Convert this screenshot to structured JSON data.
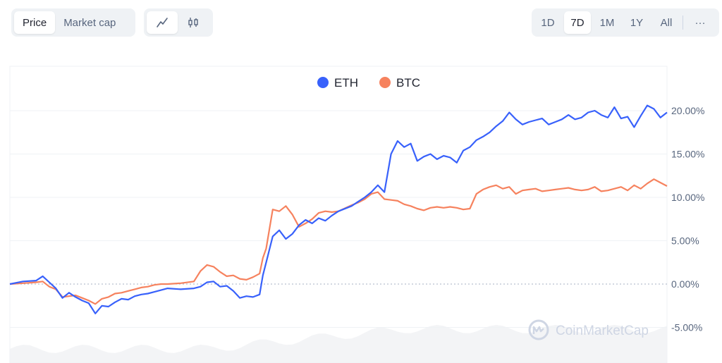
{
  "toolbar": {
    "type_tabs": [
      {
        "label": "Price",
        "active": true
      },
      {
        "label": "Market cap",
        "active": false
      }
    ],
    "mode_tabs": [
      {
        "icon": "line-chart-icon",
        "active": true
      },
      {
        "icon": "candlestick-icon",
        "active": false
      }
    ],
    "range_tabs": [
      {
        "label": "1D",
        "active": false
      },
      {
        "label": "7D",
        "active": true
      },
      {
        "label": "1M",
        "active": false
      },
      {
        "label": "1Y",
        "active": false
      },
      {
        "label": "All",
        "active": false
      }
    ],
    "more_label": "···"
  },
  "watermark": {
    "text": "CoinMarketCap"
  },
  "chart_data": {
    "type": "line",
    "y_ticks": [
      "20.00%",
      "15.00%",
      "10.00%",
      "5.00%",
      "0.00%",
      "-5.00%"
    ],
    "y_tick_values": [
      20,
      15,
      10,
      5,
      0,
      -5
    ],
    "ylim": [
      -9,
      25
    ],
    "xlim": [
      0,
      100
    ],
    "grid": true,
    "legend_position": "top-center",
    "zero_line": true,
    "series": [
      {
        "name": "ETH",
        "color": "#3861fb",
        "x": [
          0,
          2,
          4,
          5,
          6,
          7,
          8,
          9,
          10,
          11,
          12,
          13,
          14,
          15,
          16,
          17,
          18,
          19,
          20,
          21,
          22,
          23,
          24,
          26,
          28,
          29,
          30,
          31,
          32,
          33,
          34,
          35,
          36,
          37,
          38,
          38.5,
          39,
          40,
          41,
          42,
          43,
          44,
          45,
          46,
          47,
          48,
          49,
          50,
          52,
          53,
          54,
          55,
          56,
          57,
          58,
          59,
          60,
          61,
          62,
          63,
          64,
          65,
          66,
          67,
          68,
          69,
          70,
          71,
          72,
          73,
          74,
          75,
          76,
          77,
          78,
          79,
          80,
          81,
          82,
          83,
          84,
          85,
          86,
          87,
          88,
          89,
          90,
          91,
          92,
          93,
          94,
          95,
          96,
          97,
          98,
          99,
          100
        ],
        "values": [
          0,
          0.3,
          0.4,
          0.9,
          0.2,
          -0.5,
          -1.6,
          -1.0,
          -1.5,
          -1.9,
          -2.2,
          -3.4,
          -2.5,
          -2.6,
          -2.1,
          -1.7,
          -1.8,
          -1.4,
          -1.2,
          -1.1,
          -0.9,
          -0.7,
          -0.5,
          -0.6,
          -0.5,
          -0.3,
          0.2,
          0.3,
          -0.3,
          -0.2,
          -0.8,
          -1.6,
          -1.4,
          -1.5,
          -1.2,
          1.0,
          2.5,
          5.5,
          6.2,
          5.2,
          5.8,
          6.8,
          7.4,
          7.0,
          7.6,
          7.3,
          7.9,
          8.4,
          9.0,
          9.5,
          10.0,
          10.6,
          11.4,
          10.6,
          15.0,
          16.5,
          15.8,
          16.2,
          14.2,
          14.7,
          15.0,
          14.4,
          14.8,
          14.6,
          14.0,
          15.4,
          15.8,
          16.6,
          17.0,
          17.5,
          18.2,
          18.8,
          19.8,
          19.0,
          18.4,
          18.7,
          18.9,
          19.1,
          18.4,
          18.7,
          19.0,
          19.5,
          19.0,
          19.2,
          19.8,
          20.0,
          19.5,
          19.2,
          20.4,
          19.1,
          19.3,
          18.1,
          19.4,
          20.6,
          20.2,
          19.2,
          19.8
        ]
      },
      {
        "name": "BTC",
        "color": "#f6825e",
        "x": [
          0,
          2,
          4,
          5,
          6,
          7,
          8,
          9,
          10,
          11,
          12,
          13,
          14,
          15,
          16,
          17,
          18,
          19,
          20,
          21,
          22,
          23,
          24,
          26,
          28,
          29,
          30,
          31,
          32,
          33,
          34,
          35,
          36,
          37,
          38,
          38.5,
          39,
          40,
          41,
          42,
          43,
          44,
          45,
          46,
          47,
          48,
          49,
          50,
          52,
          53,
          54,
          55,
          56,
          57,
          58,
          59,
          60,
          61,
          62,
          63,
          64,
          65,
          66,
          67,
          68,
          69,
          70,
          71,
          72,
          73,
          74,
          75,
          76,
          77,
          78,
          79,
          80,
          81,
          82,
          83,
          84,
          85,
          86,
          87,
          88,
          89,
          90,
          91,
          92,
          93,
          94,
          95,
          96,
          97,
          98,
          99,
          100
        ],
        "values": [
          0,
          0.1,
          0.2,
          0.3,
          -0.3,
          -0.6,
          -1.5,
          -1.4,
          -1.3,
          -1.6,
          -1.9,
          -2.3,
          -1.7,
          -1.5,
          -1.1,
          -1.0,
          -0.8,
          -0.6,
          -0.4,
          -0.3,
          -0.1,
          0,
          0,
          0.1,
          0.3,
          1.5,
          2.2,
          2.0,
          1.4,
          0.9,
          1.0,
          0.6,
          0.5,
          0.8,
          1.2,
          3.0,
          4.1,
          8.6,
          8.4,
          9.0,
          8.0,
          6.6,
          7.0,
          7.5,
          8.2,
          8.4,
          8.3,
          8.4,
          9.1,
          9.4,
          9.8,
          10.4,
          10.6,
          9.8,
          9.7,
          9.6,
          9.2,
          9.0,
          8.7,
          8.5,
          8.8,
          8.9,
          8.8,
          8.9,
          8.8,
          8.6,
          8.7,
          10.4,
          10.9,
          11.2,
          11.4,
          11.0,
          11.2,
          10.4,
          10.8,
          10.9,
          11.0,
          10.7,
          10.8,
          10.9,
          11.0,
          11.1,
          10.9,
          10.8,
          10.9,
          11.2,
          10.7,
          10.8,
          11.0,
          11.2,
          10.8,
          11.4,
          11.0,
          11.6,
          12.1,
          11.7,
          11.3
        ]
      }
    ]
  }
}
